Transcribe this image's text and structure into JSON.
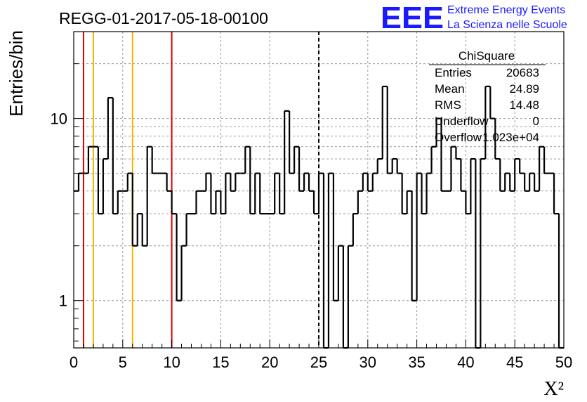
{
  "chart_data": {
    "type": "histogram",
    "title": "REGG-01-2017-05-18-00100",
    "xlabel": "X²",
    "ylabel": "Entries/bin",
    "xlim": [
      0,
      50
    ],
    "ylim": [
      0.55,
      30
    ],
    "yscale": "log",
    "grid": true,
    "x_ticks": [
      "0",
      "5",
      "10",
      "15",
      "20",
      "25",
      "30",
      "35",
      "40",
      "45",
      "50"
    ],
    "y_ticks": [
      "1",
      "10"
    ],
    "bin_width": 0.5,
    "bin_counts": [
      4,
      5,
      5,
      7,
      7,
      3,
      6,
      13,
      3,
      4,
      4,
      5,
      2,
      3,
      2,
      7,
      5,
      5,
      5,
      4,
      3,
      1,
      2,
      3,
      3,
      4,
      4,
      5,
      3,
      4,
      3,
      5,
      4,
      5,
      5,
      7,
      3,
      5,
      3,
      3,
      3,
      5,
      3,
      11,
      5,
      7,
      4,
      5,
      4,
      3,
      5,
      0,
      5,
      1,
      2,
      0,
      2,
      3,
      4,
      5,
      4,
      5,
      6,
      15,
      5,
      6,
      5,
      3,
      4,
      1,
      5,
      3,
      5,
      7,
      10,
      4,
      4,
      7,
      6,
      4,
      3,
      6,
      0,
      6,
      15,
      10,
      6,
      4,
      5,
      4,
      6,
      5,
      4,
      5,
      4,
      7,
      5,
      5,
      3,
      0
    ],
    "vertical_lines": [
      {
        "x": 1,
        "color": "#e00000"
      },
      {
        "x": 2,
        "color": "#f0b400"
      },
      {
        "x": 6,
        "color": "#f0b400"
      },
      {
        "x": 10,
        "color": "#e00000"
      },
      {
        "x": 25,
        "color": "#000000",
        "style": "dashed"
      }
    ],
    "stats": {
      "title": "ChiSquare",
      "rows": [
        {
          "label": "Entries",
          "value": "20683"
        },
        {
          "label": "Mean",
          "value": "24.89"
        },
        {
          "label": "RMS",
          "value": "14.48"
        },
        {
          "label": "Underflow",
          "value": "0"
        },
        {
          "label": "Overflow",
          "value": "1.023e+04"
        }
      ]
    }
  },
  "logo": {
    "mark": "EEE",
    "line1": "Extreme Energy Events",
    "line2": "La Scienza nelle Scuole"
  }
}
